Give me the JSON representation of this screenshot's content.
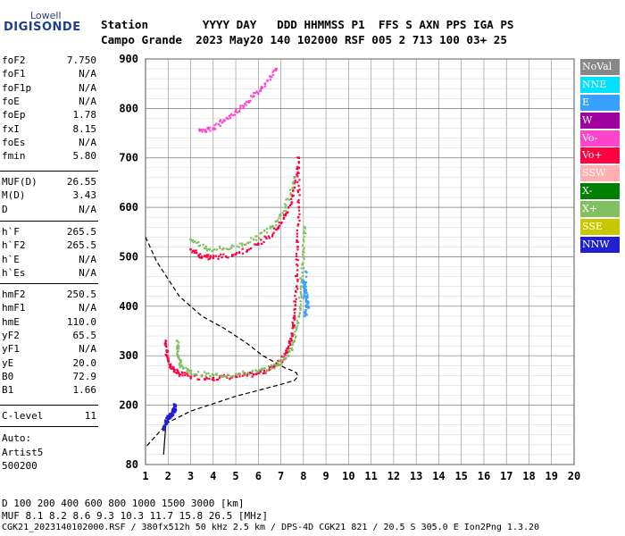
{
  "logo": {
    "top": "Lowell",
    "main": "DIGISONDE"
  },
  "header": {
    "line1": "Station        YYYY DAY   DDD HHMMSS P1  FFS S AXN PPS IGA PS",
    "line2": "Campo Grande  2023 May20 140 102000 RSF 005 2 713 100 03+ 25"
  },
  "params": {
    "group1": [
      {
        "k": "foF2",
        "v": "7.750"
      },
      {
        "k": "foF1",
        "v": "N/A"
      },
      {
        "k": "foF1p",
        "v": "N/A"
      },
      {
        "k": "foE",
        "v": "N/A"
      },
      {
        "k": "foEp",
        "v": "1.78"
      },
      {
        "k": "fxI",
        "v": "8.15"
      },
      {
        "k": "foEs",
        "v": "N/A"
      },
      {
        "k": "fmin",
        "v": "5.80"
      }
    ],
    "group2": [
      {
        "k": "MUF(D)",
        "v": "26.55"
      },
      {
        "k": "M(D)",
        "v": "3.43"
      },
      {
        "k": "D",
        "v": "N/A"
      }
    ],
    "group3": [
      {
        "k": "h`F",
        "v": "265.5"
      },
      {
        "k": "h`F2",
        "v": "265.5"
      },
      {
        "k": "h`E",
        "v": "N/A"
      },
      {
        "k": "h`Es",
        "v": "N/A"
      }
    ],
    "group4": [
      {
        "k": "hmF2",
        "v": "250.5"
      },
      {
        "k": "hmF1",
        "v": "N/A"
      },
      {
        "k": "hmE",
        "v": "110.0"
      },
      {
        "k": "yF2",
        "v": "65.5"
      },
      {
        "k": "yF1",
        "v": "N/A"
      },
      {
        "k": "yE",
        "v": "20.0"
      },
      {
        "k": "B0",
        "v": "72.9"
      },
      {
        "k": "B1",
        "v": "1.66"
      }
    ],
    "group5": [
      {
        "k": "C-level",
        "v": "11"
      }
    ]
  },
  "autoscale": {
    "line1": "Auto:",
    "line2": "Artist5",
    "line3": "500200"
  },
  "legend": [
    {
      "label": "NoVal",
      "color": "#888888"
    },
    {
      "label": "NNE",
      "color": "#00e0ff"
    },
    {
      "label": "E",
      "color": "#3aa0ff"
    },
    {
      "label": "W",
      "color": "#a000a0"
    },
    {
      "label": "Vo-",
      "color": "#ff44cc"
    },
    {
      "label": "Vo+",
      "color": "#ff0040"
    },
    {
      "label": "SSW",
      "color": "#ffb0b0"
    },
    {
      "label": "X-",
      "color": "#008000"
    },
    {
      "label": "X+",
      "color": "#80c060"
    },
    {
      "label": "SSE",
      "color": "#c8c800"
    },
    {
      "label": "NNW",
      "color": "#2020d0"
    }
  ],
  "footer": {
    "dline": "D     100  200  400  600  800 1000 1500 3000 [km]",
    "mufline": "MUF   8.1  8.2  8.6  9.3 10.3 11.7 15.8 26.5 [MHz]",
    "fileline": "CGK21_2023140102000.RSF / 380fx512h 50 kHz 2.5 km / DPS-4D CGK21 821 / 20.5 S 305.0 E Ion2Png 1.3.20"
  },
  "chart_data": {
    "type": "scatter",
    "xlim": [
      1,
      20
    ],
    "ylim": [
      80,
      900
    ],
    "xticks": [
      "1",
      "2",
      "3",
      "4",
      "5",
      "6",
      "7",
      "8",
      "9",
      "10",
      "11",
      "12",
      "13",
      "14",
      "15",
      "16",
      "17",
      "18",
      "19",
      "20"
    ],
    "yticks": [
      "80",
      "200",
      "300",
      "400",
      "500",
      "600",
      "700",
      "800",
      "900"
    ],
    "grid": true,
    "legend_position": "right",
    "series": [
      {
        "name": "Vo+",
        "color": "#ff0040",
        "points": [
          [
            1.9,
            330
          ],
          [
            1.95,
            300
          ],
          [
            2.1,
            280
          ],
          [
            2.4,
            265
          ],
          [
            3,
            258
          ],
          [
            4,
            255
          ],
          [
            5,
            258
          ],
          [
            5.8,
            262
          ],
          [
            6.5,
            272
          ],
          [
            7,
            290
          ],
          [
            7.3,
            310
          ],
          [
            7.5,
            340
          ],
          [
            7.6,
            380
          ],
          [
            7.7,
            440
          ],
          [
            7.75,
            520
          ],
          [
            7.8,
            600
          ],
          [
            7.8,
            680
          ]
        ]
      },
      {
        "name": "X+",
        "color": "#80c060",
        "points": [
          [
            2.4,
            330
          ],
          [
            2.45,
            300
          ],
          [
            2.6,
            280
          ],
          [
            3,
            265
          ],
          [
            4,
            260
          ],
          [
            5,
            262
          ],
          [
            6,
            268
          ],
          [
            6.8,
            280
          ],
          [
            7.3,
            300
          ],
          [
            7.6,
            330
          ],
          [
            7.8,
            380
          ],
          [
            7.9,
            440
          ],
          [
            8.0,
            500
          ],
          [
            8.05,
            560
          ]
        ]
      },
      {
        "name": "E",
        "color": "#3aa0ff",
        "points": [
          [
            8.0,
            450
          ],
          [
            8.1,
            430
          ],
          [
            8.15,
            410
          ],
          [
            8.2,
            400
          ],
          [
            8.05,
            380
          ],
          [
            8.1,
            470
          ]
        ]
      },
      {
        "name": "Vo-",
        "color": "#ff44cc",
        "points": [
          [
            3.4,
            755
          ],
          [
            4.0,
            760
          ],
          [
            4.6,
            780
          ],
          [
            5.2,
            800
          ],
          [
            5.8,
            825
          ],
          [
            6.3,
            850
          ],
          [
            6.8,
            880
          ]
        ]
      },
      {
        "name": "Vo+ (2nd hop)",
        "color": "#ff0040",
        "points": [
          [
            3,
            515
          ],
          [
            3.5,
            500
          ],
          [
            4,
            498
          ],
          [
            5,
            505
          ],
          [
            6,
            525
          ],
          [
            6.8,
            555
          ],
          [
            7.3,
            590
          ],
          [
            7.6,
            640
          ],
          [
            7.8,
            700
          ]
        ]
      },
      {
        "name": "X+ (2nd hop)",
        "color": "#80c060",
        "points": [
          [
            3,
            535
          ],
          [
            3.8,
            515
          ],
          [
            4.8,
            518
          ],
          [
            5.8,
            535
          ],
          [
            6.6,
            560
          ],
          [
            7.2,
            600
          ],
          [
            7.6,
            660
          ]
        ]
      },
      {
        "name": "low-E",
        "color": "#2020d0",
        "points": [
          [
            1.8,
            150
          ],
          [
            1.9,
            165
          ],
          [
            2.0,
            175
          ],
          [
            2.1,
            180
          ],
          [
            2.2,
            185
          ],
          [
            2.3,
            190
          ],
          [
            2.3,
            200
          ]
        ]
      }
    ],
    "profile": {
      "dashed": [
        [
          1,
          540
        ],
        [
          1.5,
          490
        ],
        [
          2.5,
          420
        ],
        [
          3.5,
          380
        ],
        [
          4.5,
          355
        ],
        [
          5.5,
          325
        ],
        [
          6.2,
          300
        ],
        [
          6.8,
          285
        ],
        [
          7.2,
          275
        ],
        [
          7.5,
          270
        ],
        [
          7.7,
          265
        ],
        [
          7.75,
          258
        ],
        [
          7.6,
          250
        ],
        [
          7.0,
          242
        ],
        [
          6.0,
          230
        ],
        [
          5.0,
          218
        ],
        [
          4.0,
          203
        ],
        [
          3.0,
          188
        ],
        [
          2.0,
          165
        ],
        [
          1.5,
          140
        ],
        [
          1,
          115
        ]
      ],
      "solid": [
        [
          1.8,
          100
        ],
        [
          1.85,
          130
        ],
        [
          1.9,
          160
        ],
        [
          2.0,
          175
        ]
      ]
    }
  }
}
